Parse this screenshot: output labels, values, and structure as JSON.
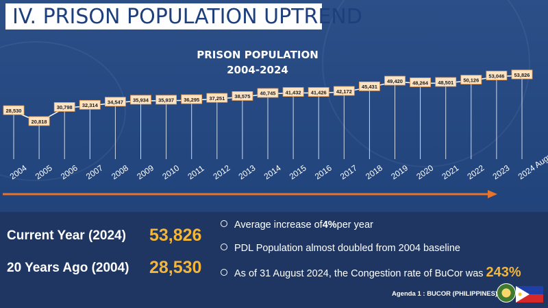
{
  "title": "IV. PRISON POPULATION UPTREND",
  "chart_data": {
    "type": "line",
    "title": "PRISON POPULATION",
    "subtitle": "2004-2024",
    "categories": [
      "2004",
      "2005",
      "2006",
      "2007",
      "2008",
      "2009",
      "2010",
      "2011",
      "2012",
      "2013",
      "2014",
      "2015",
      "2016",
      "2017",
      "2018",
      "2019",
      "2020",
      "2021",
      "2022",
      "2023",
      "2024 August"
    ],
    "values": [
      28530,
      20818,
      30798,
      32314,
      34547,
      35934,
      35937,
      36295,
      37251,
      38575,
      40745,
      41432,
      41426,
      42172,
      45431,
      49420,
      48264,
      48501,
      50126,
      53046,
      53826
    ],
    "value_labels": [
      "28,530",
      "20,818",
      "30,798",
      "32,314",
      "34,547",
      "35,934",
      "35,937",
      "36,295",
      "37,251",
      "38,575",
      "40,745",
      "41,432",
      "41,426",
      "42,172",
      "45,431",
      "49,420",
      "48,264",
      "48,501",
      "50,126",
      "53,046",
      "53,826"
    ],
    "ylim": [
      0,
      60000
    ],
    "grid": false,
    "legend": "none",
    "colors": {
      "line": "#ffffff",
      "label_bg": "#fbe3c4",
      "label_border": "#e59a50",
      "arrow": "#e8742c"
    }
  },
  "stats": {
    "current_label": "Current Year (2024)",
    "current_value": "53,826",
    "past_label": "20 Years Ago (2004)",
    "past_value": "28,530"
  },
  "bullets": {
    "b1_pre": "Average increase of ",
    "b1_bold": "4%",
    "b1_post": " per year",
    "b2": "PDL Population almost doubled from 2004 baseline",
    "b3_text": "As of 31 August 2024, the Congestion rate of BuCor was",
    "b3_value": "243%"
  },
  "footer": "Agenda 1 : BUCOR (PHILIPPINES)",
  "colors": {
    "accent": "#f4b63a",
    "title_text": "#1d3f7c",
    "bottom_bg": "#1e3661"
  },
  "icons": {
    "seal": "bucor-seal-icon",
    "flag": "philippine-flag-icon"
  }
}
